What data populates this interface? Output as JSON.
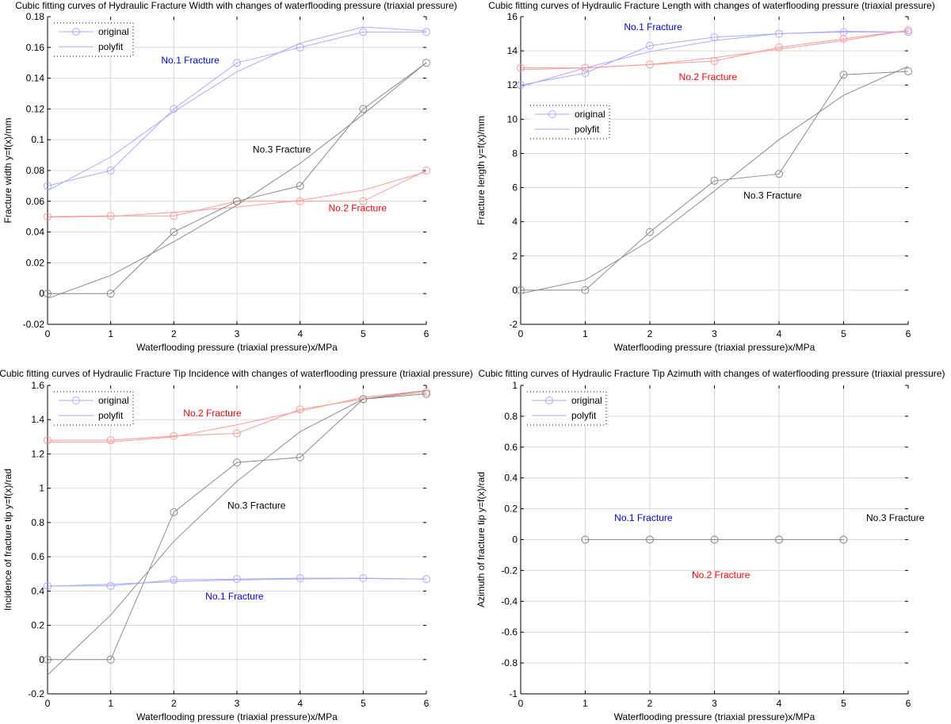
{
  "chart_data": [
    {
      "type": "line",
      "title": "Cubic fitting curves of Hydraulic Fracture Width with changes of waterflooding pressure (triaxial pressure)",
      "xlabel": "Waterflooding pressure (triaxial pressure)x/MPa",
      "ylabel": "Fracture width y=f(x)/mm",
      "xlim": [
        0,
        6
      ],
      "ylim": [
        -0.02,
        0.18
      ],
      "xticks": [
        0,
        1,
        2,
        3,
        4,
        5,
        6
      ],
      "xtick_labels": [
        "0",
        "1",
        "2",
        "3",
        "4",
        "5",
        "6"
      ],
      "yticks": [
        -0.02,
        0,
        0.02,
        0.04,
        0.06,
        0.08,
        0.1,
        0.12,
        0.14,
        0.16,
        0.18
      ],
      "ytick_labels": [
        "-0.02",
        "0",
        "0.02",
        "0.04",
        "0.06",
        "0.08",
        "0.1",
        "0.12",
        "0.14",
        "0.16",
        "0.18"
      ],
      "grid": true,
      "legend": {
        "position": "top-left",
        "entries": [
          "original",
          "polyfit"
        ]
      },
      "x": [
        0,
        1,
        2,
        3,
        4,
        5,
        6
      ],
      "series": [
        {
          "name": "No.1 Fracture",
          "color": "#0000ff",
          "original": [
            0.07,
            0.08,
            0.12,
            0.15,
            0.16,
            0.17,
            0.17
          ],
          "polyfit": [
            0.0669,
            0.0888,
            0.1183,
            0.1442,
            0.1628,
            0.1733,
            0.1707
          ]
        },
        {
          "name": "No.2 Fracture",
          "color": "#ff0000",
          "original": [
            0.05,
            0.0505,
            0.0505,
            0.06,
            0.06,
            0.06,
            0.08
          ],
          "polyfit": [
            0.0497,
            0.0502,
            0.0528,
            0.0562,
            0.0606,
            0.0672,
            0.0792
          ]
        },
        {
          "name": "No.3 Fracture",
          "color": "#000000",
          "original": [
            0,
            0,
            0.04,
            0.06,
            0.07,
            0.12,
            0.15
          ],
          "polyfit": [
            -0.0032,
            0.0118,
            0.0337,
            0.0575,
            0.0846,
            0.1165,
            0.1502
          ]
        }
      ],
      "annotations": [
        {
          "text": "No.1 Fracture",
          "color": "#0000ff",
          "x": 1.8,
          "y": 0.1495
        },
        {
          "text": "No.2 Fracture",
          "color": "#ff0000",
          "x": 4.45,
          "y": 0.0535
        },
        {
          "text": "No.3 Fracture",
          "color": "#000000",
          "x": 3.25,
          "y": 0.0915
        }
      ]
    },
    {
      "type": "line",
      "title": "Cubic fitting curves of Hydraulic Fracture Length with changes of waterflooding pressure (triaxial pressure)",
      "xlabel": "Waterflooding pressure (triaxial pressure)x/MPa",
      "ylabel": "Fracture length y=f(x)/mm",
      "xlim": [
        0,
        6
      ],
      "ylim": [
        -2,
        16
      ],
      "xticks": [
        0,
        1,
        2,
        3,
        4,
        5,
        6
      ],
      "xtick_labels": [
        "0",
        "1",
        "2",
        "3",
        "4",
        "5",
        "6"
      ],
      "yticks": [
        -2,
        0,
        2,
        4,
        6,
        8,
        10,
        12,
        14,
        16
      ],
      "ytick_labels": [
        "-2",
        "0",
        "2",
        "4",
        "6",
        "8",
        "10",
        "12",
        "14",
        "16"
      ],
      "grid": true,
      "legend": {
        "position": "middle-left",
        "entries": [
          "original",
          "polyfit"
        ]
      },
      "x": [
        0,
        1,
        2,
        3,
        4,
        5,
        6
      ],
      "series": [
        {
          "name": "No.1 Fracture",
          "color": "#0000ff",
          "original": [
            12,
            12.7,
            14.3,
            14.8,
            15.0,
            15.1,
            15.1
          ],
          "polyfit": [
            11.9,
            13.0,
            13.95,
            14.6,
            15.0,
            15.15,
            15.1
          ]
        },
        {
          "name": "No.2 Fracture",
          "color": "#ff0000",
          "original": [
            13,
            13,
            13.2,
            13.4,
            14.2,
            14.7,
            15.2
          ],
          "polyfit": [
            12.9,
            13.0,
            13.2,
            13.6,
            14.1,
            14.6,
            15.2
          ]
        },
        {
          "name": "No.3 Fracture",
          "color": "#000000",
          "original": [
            0,
            0,
            3.4,
            6.4,
            6.8,
            12.6,
            12.8
          ],
          "polyfit": [
            -0.2,
            0.6,
            2.9,
            5.8,
            8.8,
            11.4,
            13.1
          ]
        }
      ],
      "annotations": [
        {
          "text": "No.1 Fracture",
          "color": "#0000ff",
          "x": 1.6,
          "y": 15.2
        },
        {
          "text": "No.2 Fracture",
          "color": "#ff0000",
          "x": 2.45,
          "y": 12.3
        },
        {
          "text": "No.3 Fracture",
          "color": "#000000",
          "x": 3.45,
          "y": 5.35
        }
      ]
    },
    {
      "type": "line",
      "title": "Cubic fitting curves of Hydraulic Fracture Tip Incidence with changes of waterflooding pressure (triaxial pressure)",
      "xlabel": "Waterflooding pressure (triaxial pressure)x/MPa",
      "ylabel": "Incidence of fracture tip y=f(x)/rad",
      "xlim": [
        0,
        6
      ],
      "ylim": [
        -0.2,
        1.6
      ],
      "xticks": [
        0,
        1,
        2,
        3,
        4,
        5,
        6
      ],
      "xtick_labels": [
        "0",
        "1",
        "2",
        "3",
        "4",
        "5",
        "6"
      ],
      "yticks": [
        -0.2,
        0,
        0.2,
        0.4,
        0.6,
        0.8,
        1,
        1.2,
        1.4,
        1.6
      ],
      "ytick_labels": [
        "-0.2",
        "0",
        "0.2",
        "0.4",
        "0.6",
        "0.8",
        "1",
        "1.2",
        "1.4",
        "1.6"
      ],
      "grid": true,
      "legend": {
        "position": "top-left",
        "entries": [
          "original",
          "polyfit"
        ]
      },
      "x": [
        0,
        1,
        2,
        3,
        4,
        5,
        6
      ],
      "series": [
        {
          "name": "No.1 Fracture",
          "color": "#0000ff",
          "original": [
            0.43,
            0.43,
            0.465,
            0.47,
            0.475,
            0.475,
            0.47
          ],
          "polyfit": [
            0.428,
            0.44,
            0.455,
            0.465,
            0.47,
            0.473,
            0.47
          ]
        },
        {
          "name": "No.2 Fracture",
          "color": "#ff0000",
          "original": [
            1.28,
            1.28,
            1.305,
            1.32,
            1.46,
            1.52,
            1.56
          ],
          "polyfit": [
            1.27,
            1.27,
            1.3,
            1.37,
            1.45,
            1.53,
            1.57
          ]
        },
        {
          "name": "No.3 Fracture",
          "color": "#000000",
          "original": [
            0,
            0,
            0.86,
            1.15,
            1.18,
            1.52,
            1.55
          ],
          "polyfit": [
            -0.09,
            0.26,
            0.69,
            1.04,
            1.33,
            1.52,
            1.57
          ]
        }
      ],
      "annotations": [
        {
          "text": "No.2 Fracture",
          "color": "#ff0000",
          "x": 2.15,
          "y": 1.42
        },
        {
          "text": "No.3 Fracture",
          "color": "#000000",
          "x": 2.85,
          "y": 0.88
        },
        {
          "text": "No.1 Fracture",
          "color": "#0000ff",
          "x": 2.5,
          "y": 0.35
        }
      ]
    },
    {
      "type": "line",
      "title": "Cubic fitting curves of Hydraulic Fracture Tip Azimuth with changes of waterflooding pressure (triaxial pressure)",
      "xlabel": "Waterflooding pressure (triaxial pressure)x/MPa",
      "ylabel": "Azimuth of fracture tip y=f(x)/rad",
      "xlim": [
        0,
        6
      ],
      "ylim": [
        -1,
        1
      ],
      "xticks": [
        0,
        1,
        2,
        3,
        4,
        5,
        6
      ],
      "xtick_labels": [
        "0",
        "1",
        "2",
        "3",
        "4",
        "5",
        "6"
      ],
      "yticks": [
        -1,
        -0.8,
        -0.6,
        -0.4,
        -0.2,
        0,
        0.2,
        0.4,
        0.6,
        0.8,
        1
      ],
      "ytick_labels": [
        "-1",
        "-0.8",
        "-0.6",
        "-0.4",
        "-0.2",
        "0",
        "0.2",
        "0.4",
        "0.6",
        "0.8",
        "1"
      ],
      "grid": true,
      "legend": {
        "position": "top-left",
        "entries": [
          "original",
          "polyfit"
        ]
      },
      "x": [
        1,
        2,
        3,
        4,
        5
      ],
      "series": [
        {
          "name": "No.1 Fracture",
          "color": "#0000ff",
          "original": [
            0,
            0,
            0,
            0,
            0
          ],
          "polyfit": [
            0,
            0,
            0,
            0,
            0
          ]
        },
        {
          "name": "No.2 Fracture",
          "color": "#ff0000",
          "original": [
            0,
            0,
            0,
            0,
            0
          ],
          "polyfit": [
            0,
            0,
            0,
            0,
            0
          ]
        },
        {
          "name": "No.3 Fracture",
          "color": "#000000",
          "original": [
            0,
            0,
            0,
            0,
            0
          ],
          "polyfit": [
            0,
            0,
            0,
            0,
            0
          ]
        }
      ],
      "annotations": [
        {
          "text": "No.1 Fracture",
          "color": "#0000ff",
          "x": 1.45,
          "y": 0.12
        },
        {
          "text": "No.2 Fracture",
          "color": "#ff0000",
          "x": 2.65,
          "y": -0.25
        },
        {
          "text": "No.3 Fracture",
          "color": "#000000",
          "x": 5.35,
          "y": 0.12
        }
      ]
    }
  ]
}
